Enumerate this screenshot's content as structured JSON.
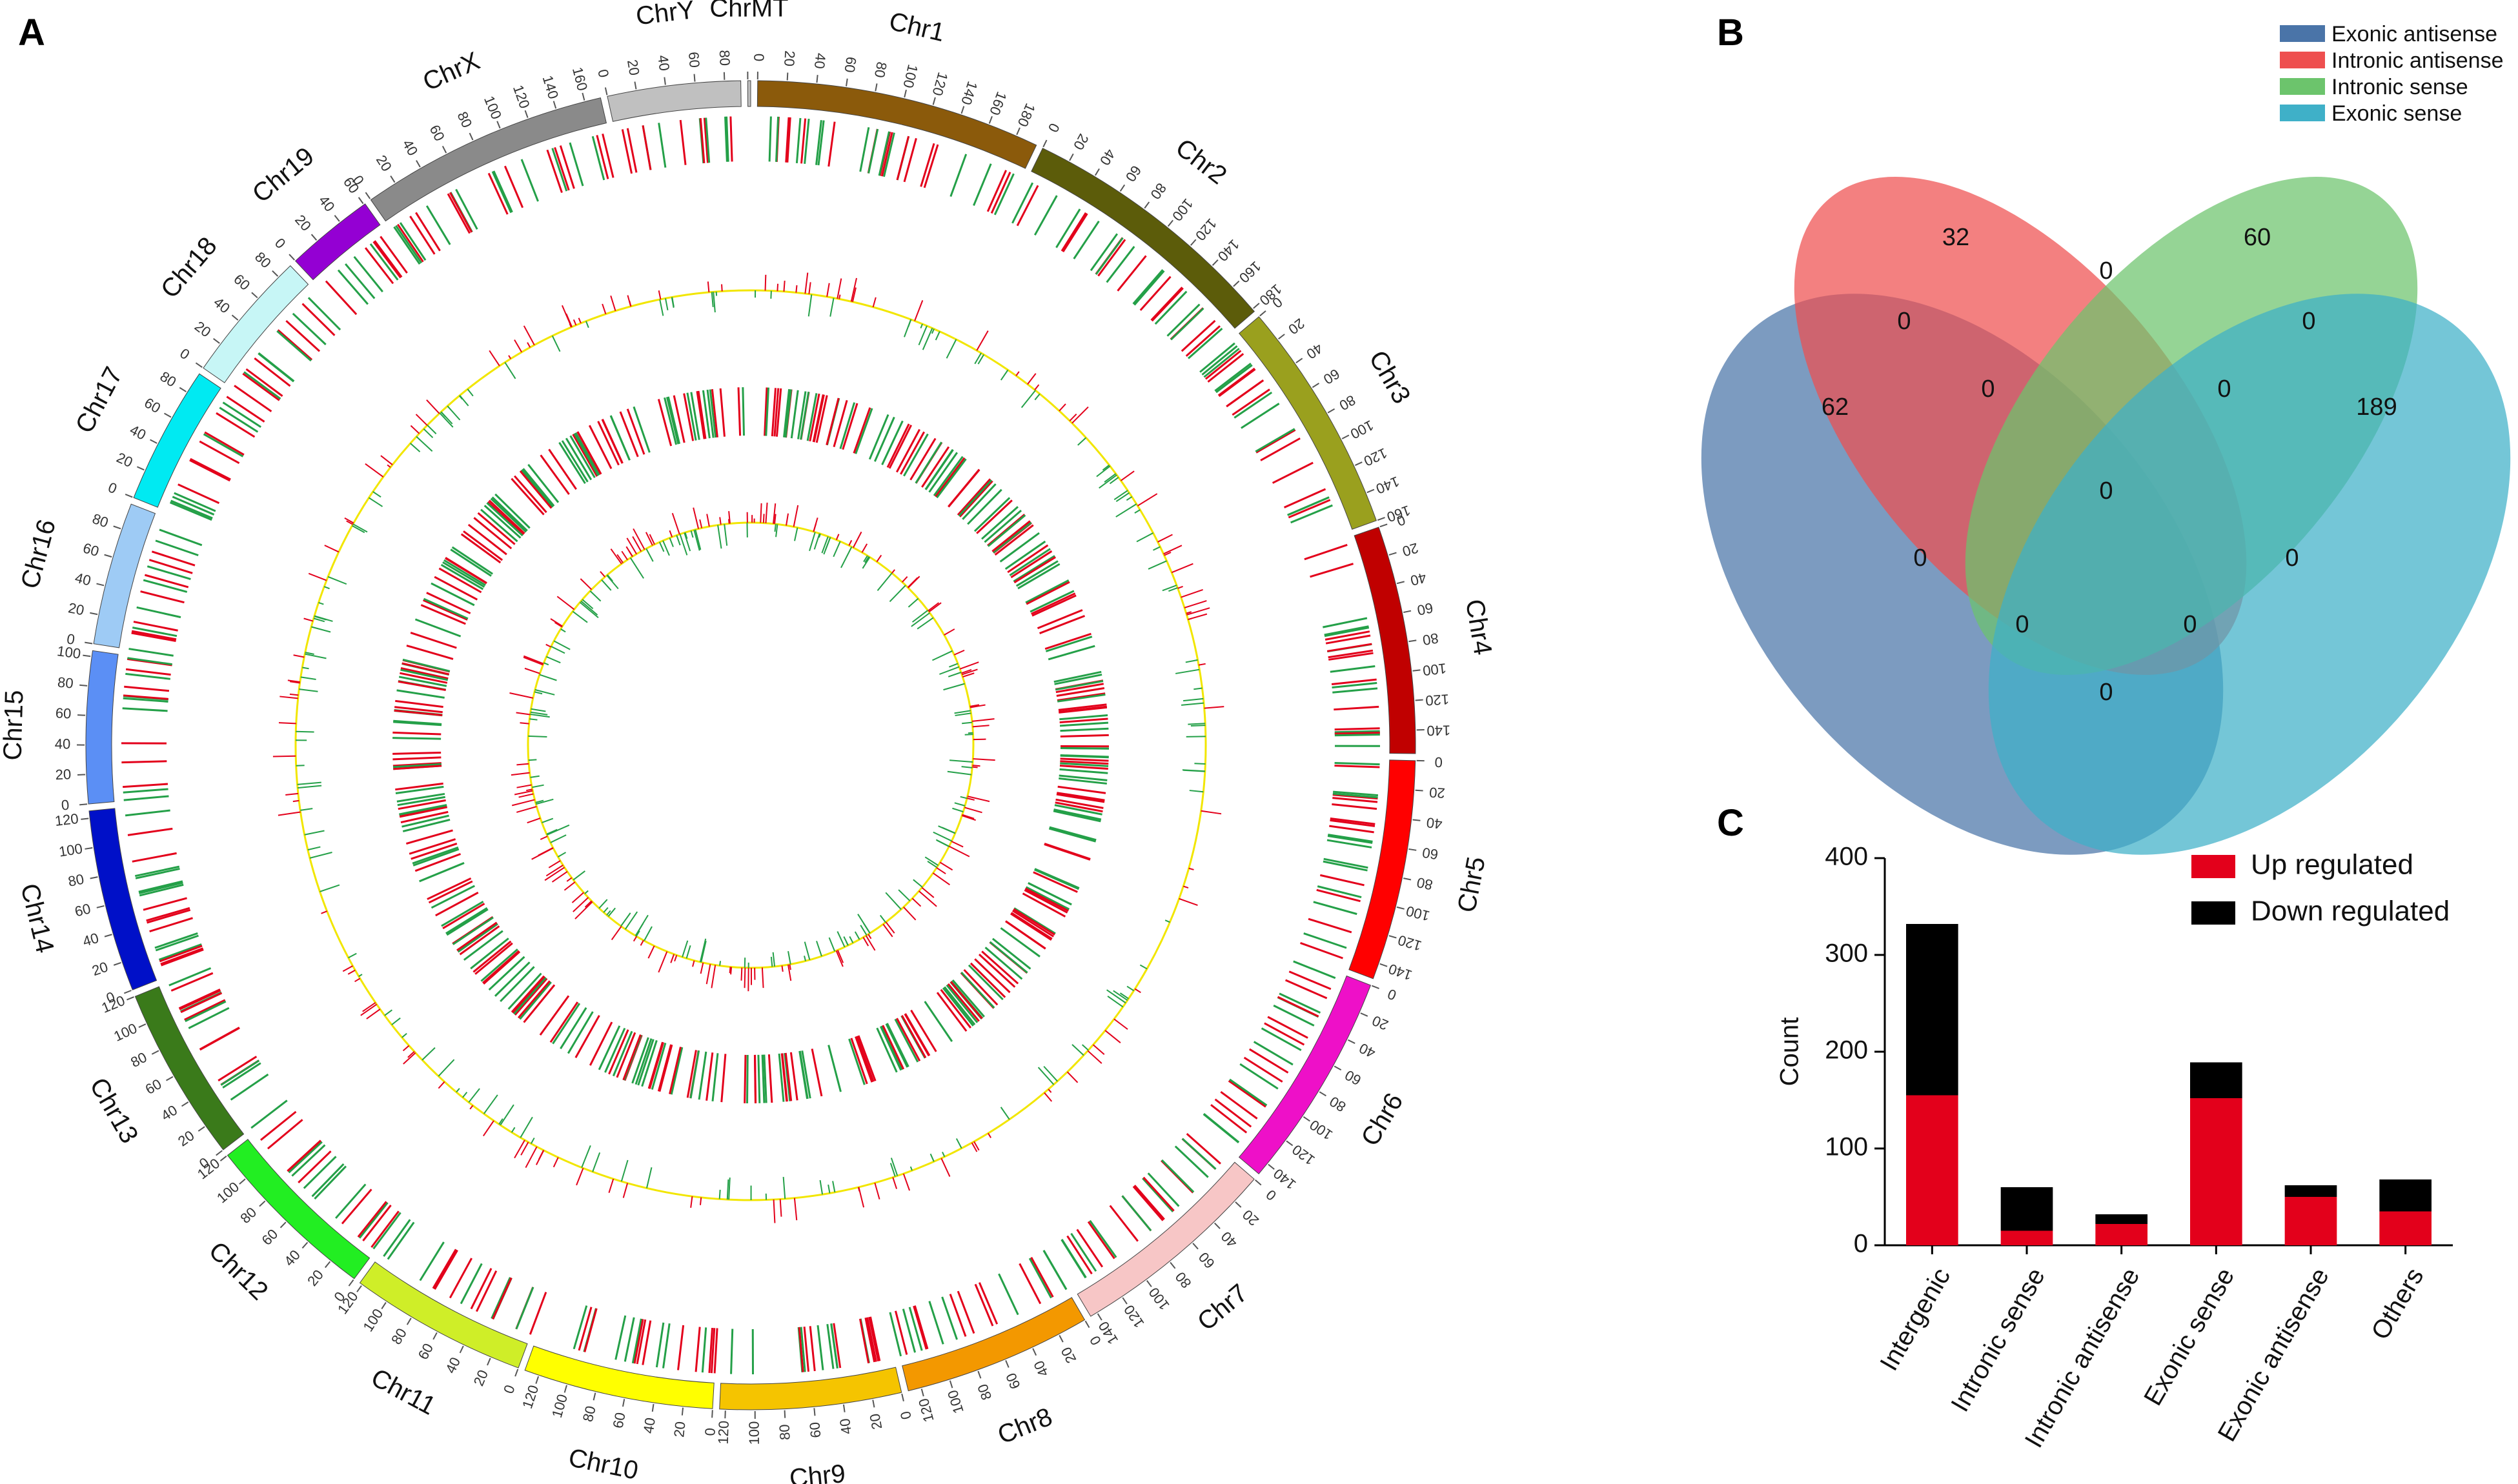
{
  "panels": {
    "a": "A",
    "b": "B",
    "c": "C"
  },
  "colors": {
    "up": "#e3001b",
    "down": "#000000",
    "green": "#24a048",
    "yellow": "#f2e600"
  },
  "chart_data": [
    {
      "type": "circos",
      "title": "",
      "chromosomes": [
        {
          "name": "Chr1",
          "length": 195,
          "color": "#8b5a0b"
        },
        {
          "name": "Chr2",
          "length": 182,
          "color": "#5c5c0a"
        },
        {
          "name": "Chr3",
          "length": 160,
          "color": "#9aa01e"
        },
        {
          "name": "Chr4",
          "length": 156,
          "color": "#c00000"
        },
        {
          "name": "Chr5",
          "length": 151,
          "color": "#ff0000"
        },
        {
          "name": "Chr6",
          "length": 149,
          "color": "#ee10c8"
        },
        {
          "name": "Chr7",
          "length": 145,
          "color": "#f7c6c6"
        },
        {
          "name": "Chr8",
          "length": 129,
          "color": "#f39800"
        },
        {
          "name": "Chr9",
          "length": 124,
          "color": "#f5c400"
        },
        {
          "name": "Chr10",
          "length": 130,
          "color": "#ffff00"
        },
        {
          "name": "Chr11",
          "length": 122,
          "color": "#cfee28"
        },
        {
          "name": "Chr12",
          "length": 120,
          "color": "#22ee22"
        },
        {
          "name": "Chr13",
          "length": 120,
          "color": "#3a7a1a"
        },
        {
          "name": "Chr14",
          "length": 125,
          "color": "#0010c8"
        },
        {
          "name": "Chr15",
          "length": 104,
          "color": "#5b8ff5"
        },
        {
          "name": "Chr16",
          "length": 98,
          "color": "#9ecbf5"
        },
        {
          "name": "Chr17",
          "length": 95,
          "color": "#00eaf2"
        },
        {
          "name": "Chr18",
          "length": 91,
          "color": "#c7f6f6"
        },
        {
          "name": "Chr19",
          "length": 61,
          "color": "#9400d3"
        },
        {
          "name": "ChrX",
          "length": 171,
          "color": "#8a8a8a"
        },
        {
          "name": "ChrY",
          "length": 91,
          "color": "#c0c0c0"
        },
        {
          "name": "ChrMT",
          "length": 2,
          "color": "#c0c0c0"
        }
      ],
      "tick_step": 20
    },
    {
      "type": "venn",
      "legend": [
        {
          "name": "Exonic antisense",
          "color": "#4a74a8"
        },
        {
          "name": "Intronic antisense",
          "color": "#ee4f4f"
        },
        {
          "name": "Intronic sense",
          "color": "#6cc46c"
        },
        {
          "name": "Exonic sense",
          "color": "#3fb0c8"
        }
      ],
      "regions": {
        "exonic_antisense_only": "62",
        "intronic_antisense_only": "32",
        "intronic_sense_only": "60",
        "exonic_sense_only": "189",
        "ea_ia": "0",
        "ia_is": "0",
        "is_es": "0",
        "ea_ia_is": "0",
        "ia_is_es": "0",
        "all": "0",
        "ea_is": "0",
        "ia_es": "0",
        "ea_is_es": "0",
        "ea_ia_es": "0",
        "ea_es": "0"
      }
    },
    {
      "type": "bar",
      "stacked": true,
      "categories": [
        "Intergenic",
        "Intronic sense",
        "Intronic antisense",
        "Exonic sense",
        "Exonic antisense",
        "Others"
      ],
      "series": [
        {
          "name": "Up regulated",
          "color": "#e3001b",
          "values": [
            155,
            15,
            22,
            152,
            50,
            35
          ]
        },
        {
          "name": "Down regulated",
          "color": "#000000",
          "values": [
            177,
            45,
            10,
            37,
            12,
            33
          ]
        }
      ],
      "ylabel": "Count",
      "xlabel": "",
      "ylim": [
        0,
        400
      ],
      "yticks": [
        0,
        100,
        200,
        300,
        400
      ]
    }
  ]
}
